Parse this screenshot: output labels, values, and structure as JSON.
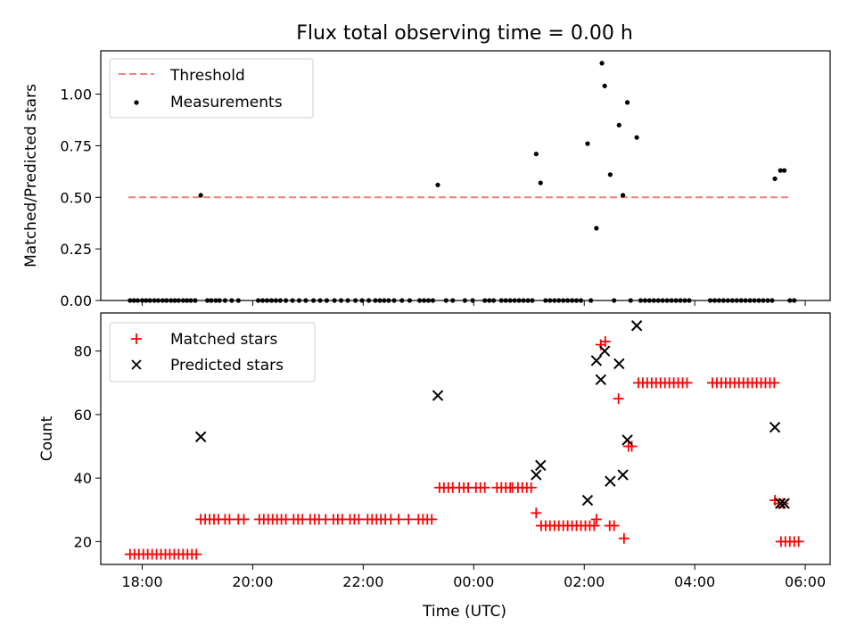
{
  "chart_data": [
    {
      "type": "scatter",
      "title": "Flux total observing time = 0.00 h",
      "xlabel": "",
      "ylabel": "Matched/Predicted stars",
      "xlim": [
        17.25,
        30.45
      ],
      "ylim": [
        0.0,
        1.21
      ],
      "xticks": [
        18,
        20,
        22,
        24,
        26,
        28,
        30
      ],
      "yticks": [
        0.0,
        0.25,
        0.5,
        0.75,
        1.0
      ],
      "ytick_labels": [
        "0.00",
        "0.25",
        "0.50",
        "0.75",
        "1.00"
      ],
      "legend": {
        "placement": "top-left",
        "entries": [
          {
            "label": "Threshold",
            "style": "dashed-line",
            "color": "#f08080"
          },
          {
            "label": "Measurements",
            "style": "dot",
            "color": "#000000"
          }
        ]
      },
      "threshold": {
        "x": [
          17.75,
          29.75
        ],
        "y": 0.5,
        "color": "#f08080"
      },
      "series": [
        {
          "name": "Measurements",
          "color": "#000000",
          "x": [
            19.06,
            23.35,
            25.13,
            25.21,
            26.06,
            26.22,
            26.32,
            26.37,
            26.47,
            26.63,
            26.7,
            26.78,
            26.95,
            29.45,
            29.55,
            29.62
          ],
          "y": [
            0.51,
            0.56,
            0.71,
            0.57,
            0.76,
            0.35,
            1.15,
            1.04,
            0.61,
            0.85,
            0.51,
            0.96,
            0.79,
            0.59,
            0.63,
            0.63
          ]
        },
        {
          "name": "Zero measurements",
          "color": "#000000",
          "y_const": 0.0,
          "x": [
            17.78,
            17.85,
            17.92,
            18.0,
            18.07,
            18.14,
            18.22,
            18.29,
            18.37,
            18.44,
            18.52,
            18.59,
            18.66,
            18.74,
            18.81,
            18.88,
            18.96,
            19.18,
            19.25,
            19.33,
            19.4,
            19.5,
            19.62,
            19.74,
            20.1,
            20.18,
            20.26,
            20.34,
            20.42,
            20.5,
            20.6,
            20.72,
            20.84,
            20.96,
            21.1,
            21.22,
            21.34,
            21.48,
            21.6,
            21.72,
            21.86,
            21.98,
            22.1,
            22.22,
            22.3,
            22.38,
            22.46,
            22.56,
            22.7,
            22.84,
            23.02,
            23.1,
            23.18,
            23.26,
            23.5,
            23.62,
            23.84,
            23.98,
            24.2,
            24.28,
            24.36,
            24.5,
            24.58,
            24.66,
            24.74,
            24.82,
            24.9,
            24.98,
            25.06,
            25.3,
            25.38,
            25.46,
            25.54,
            25.62,
            25.7,
            25.78,
            25.86,
            25.94,
            26.12,
            26.54,
            26.84,
            27.02,
            27.1,
            27.18,
            27.26,
            27.34,
            27.42,
            27.5,
            27.58,
            27.66,
            27.74,
            27.82,
            27.9,
            28.28,
            28.36,
            28.44,
            28.52,
            28.6,
            28.68,
            28.76,
            28.84,
            28.92,
            29.0,
            29.08,
            29.16,
            29.24,
            29.32,
            29.4,
            29.72,
            29.8
          ]
        }
      ]
    },
    {
      "type": "scatter",
      "title": "",
      "xlabel": "Time (UTC)",
      "ylabel": "Count",
      "xlim": [
        17.25,
        30.45
      ],
      "ylim": [
        12.8,
        92.0
      ],
      "xticks": [
        18,
        20,
        22,
        24,
        26,
        28,
        30
      ],
      "xtick_labels": [
        "18:00",
        "20:00",
        "22:00",
        "00:00",
        "02:00",
        "04:00",
        "06:00"
      ],
      "yticks": [
        20,
        40,
        60,
        80
      ],
      "ytick_labels": [
        "20",
        "40",
        "60",
        "80"
      ],
      "legend": {
        "placement": "top-left",
        "entries": [
          {
            "label": "Matched stars",
            "style": "plus",
            "color": "#ff0000"
          },
          {
            "label": "Predicted stars",
            "style": "x",
            "color": "#000000"
          }
        ]
      },
      "series": [
        {
          "name": "Matched stars",
          "marker": "plus",
          "color": "#ff0000",
          "groups": [
            {
              "y": 16,
              "x": [
                17.78,
                17.86,
                17.94,
                18.02,
                18.1,
                18.18,
                18.26,
                18.34,
                18.42,
                18.5,
                18.58,
                18.66,
                18.74,
                18.82,
                18.9,
                18.98
              ]
            },
            {
              "y": 27,
              "x": [
                19.06,
                19.14,
                19.22,
                19.3,
                19.38,
                19.5,
                19.58,
                19.74,
                19.84,
                20.12,
                20.2,
                20.28,
                20.36,
                20.44,
                20.52,
                20.6,
                20.74,
                20.82,
                20.9,
                21.04,
                21.12,
                21.2,
                21.32,
                21.46,
                21.54,
                21.62,
                21.76,
                21.84,
                21.92,
                22.08,
                22.16,
                22.24,
                22.32,
                22.4,
                22.5,
                22.64,
                22.82,
                23.0,
                23.08,
                23.16,
                23.24
              ]
            },
            {
              "y": 37,
              "x": [
                23.38,
                23.46,
                23.54,
                23.62,
                23.74,
                23.82,
                23.9,
                24.04,
                24.12,
                24.2,
                24.42,
                24.5,
                24.58,
                24.66,
                24.7,
                24.8,
                24.88,
                24.96,
                25.04
              ]
            },
            {
              "y": 25,
              "x": [
                25.22,
                25.3,
                25.38,
                25.46,
                25.54,
                25.62,
                25.7,
                25.78,
                25.86,
                25.94,
                26.02,
                26.1,
                26.18,
                26.46,
                26.54
              ]
            },
            {
              "y": 70,
              "x": [
                26.98,
                27.06,
                27.14,
                27.22,
                27.3,
                27.38,
                27.46,
                27.54,
                27.62,
                27.7,
                27.78,
                27.86,
                28.32,
                28.4,
                28.48,
                28.56,
                28.64,
                28.72,
                28.8,
                28.88,
                28.96,
                29.04,
                29.12,
                29.2,
                29.28,
                29.36,
                29.44
              ]
            },
            {
              "y": 20,
              "x": [
                29.56,
                29.64,
                29.72,
                29.8,
                29.88
              ]
            }
          ],
          "points": [
            {
              "x": 25.13,
              "y": 29
            },
            {
              "x": 26.22,
              "y": 27
            },
            {
              "x": 26.3,
              "y": 82
            },
            {
              "x": 26.38,
              "y": 83
            },
            {
              "x": 26.62,
              "y": 65
            },
            {
              "x": 26.72,
              "y": 21
            },
            {
              "x": 26.8,
              "y": 50
            },
            {
              "x": 26.86,
              "y": 50
            },
            {
              "x": 29.45,
              "y": 33
            },
            {
              "x": 29.52,
              "y": 32
            },
            {
              "x": 29.6,
              "y": 32
            }
          ]
        },
        {
          "name": "Predicted stars",
          "marker": "x",
          "color": "#000000",
          "x": [
            19.06,
            23.35,
            25.13,
            25.21,
            26.06,
            26.22,
            26.3,
            26.37,
            26.47,
            26.63,
            26.7,
            26.78,
            26.95,
            29.45,
            29.55,
            29.62
          ],
          "y": [
            53,
            66,
            41,
            44,
            33,
            77,
            71,
            80,
            39,
            76,
            41,
            52,
            88,
            56,
            32,
            32
          ]
        }
      ]
    }
  ]
}
